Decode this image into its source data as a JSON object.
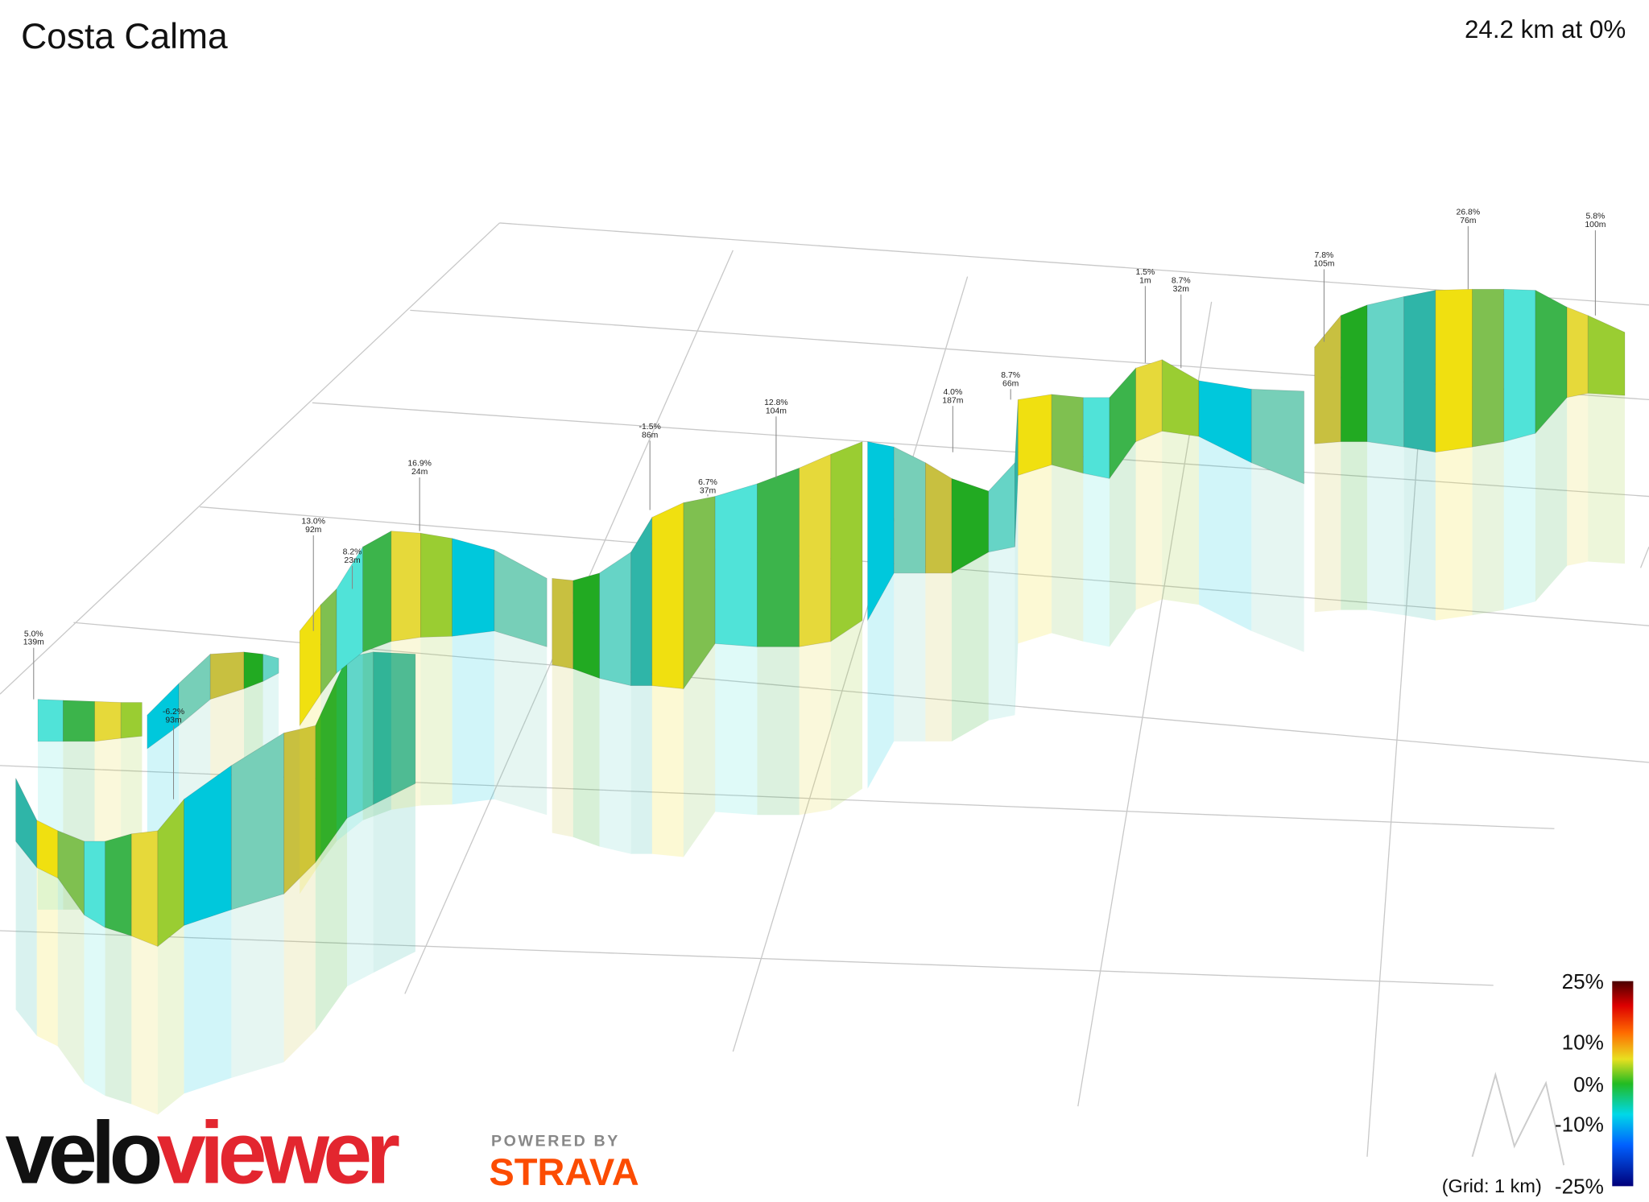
{
  "header": {
    "title": "Costa Calma",
    "summary": "24.2 km at 0%"
  },
  "annotations": [
    {
      "grade": "5.0%",
      "elevation": "139m"
    },
    {
      "grade": "-6.2%",
      "elevation": "93m"
    },
    {
      "grade": "13.0%",
      "elevation": "92m"
    },
    {
      "grade": "8.2%",
      "elevation": "23m"
    },
    {
      "grade": "16.9%",
      "elevation": "24m"
    },
    {
      "grade": "-1.5%",
      "elevation": "86m"
    },
    {
      "grade": "6.7%",
      "elevation": "37m"
    },
    {
      "grade": "12.8%",
      "elevation": "104m"
    },
    {
      "grade": "4.0%",
      "elevation": "187m"
    },
    {
      "grade": "8.7%",
      "elevation": "66m"
    },
    {
      "grade": "1.5%",
      "elevation": "1m"
    },
    {
      "grade": "8.7%",
      "elevation": "32m"
    },
    {
      "grade": "7.8%",
      "elevation": "105m"
    },
    {
      "grade": "26.8%",
      "elevation": "76m"
    },
    {
      "grade": "5.8%",
      "elevation": "100m"
    }
  ],
  "legend": {
    "ticks": [
      "25%",
      "10%",
      "0%",
      "-10%",
      "-25%"
    ],
    "grid_note": "(Grid: 1 km)"
  },
  "branding": {
    "logo_velo": "velo",
    "logo_viewer": "viewer",
    "powered_by": "POWERED BY",
    "strava": "STRAVA"
  }
}
